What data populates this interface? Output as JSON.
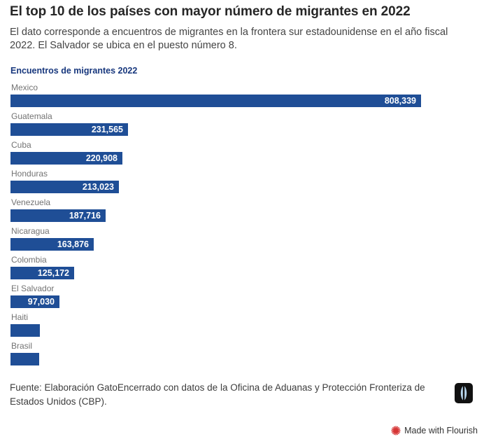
{
  "header": {
    "title": "El top 10 de los países con mayor número de migrantes en 2022",
    "subtitle": "El dato corresponde a encuentros de migrantes en la frontera sur estadounidense en el año fiscal 2022. El Salvador se ubica en el puesto número 8."
  },
  "chart_data": {
    "type": "bar",
    "orientation": "horizontal",
    "title": "Encuentros de migrantes 2022",
    "categories": [
      "Mexico",
      "Guatemala",
      "Cuba",
      "Honduras",
      "Venezuela",
      "Nicaragua",
      "Colombia",
      "El Salvador",
      "Haiti",
      "Brasil"
    ],
    "values": [
      808339,
      231565,
      220908,
      213023,
      187716,
      163876,
      125172,
      97030,
      57500,
      56500
    ],
    "value_labels": [
      "808,339",
      "231,565",
      "220,908",
      "213,023",
      "187,716",
      "163,876",
      "125,172",
      "97,030",
      "",
      ""
    ],
    "xlim": [
      0,
      808339
    ],
    "legend": "none",
    "grid": false,
    "bar_color": "#1f4e96",
    "value_label_color": "#ffffff",
    "category_label_color": "#737373"
  },
  "footer": {
    "source": "Fuente: Elaboración GatoEncerrado con datos de la Oficina de Aduanas y Protección Fronteriza de Estados Unidos (CBP).",
    "logo_icon": "gatoencerrado-cat-eye-logo"
  },
  "attribution": {
    "label": "Made with Flourish",
    "icon": "flourish-starburst-icon",
    "icon_color": "#d63434"
  },
  "colors": {
    "bar": "#1f4e96",
    "chart_title": "#17377d",
    "page_title": "#262626",
    "body_text": "#444444",
    "background": "#ffffff"
  }
}
